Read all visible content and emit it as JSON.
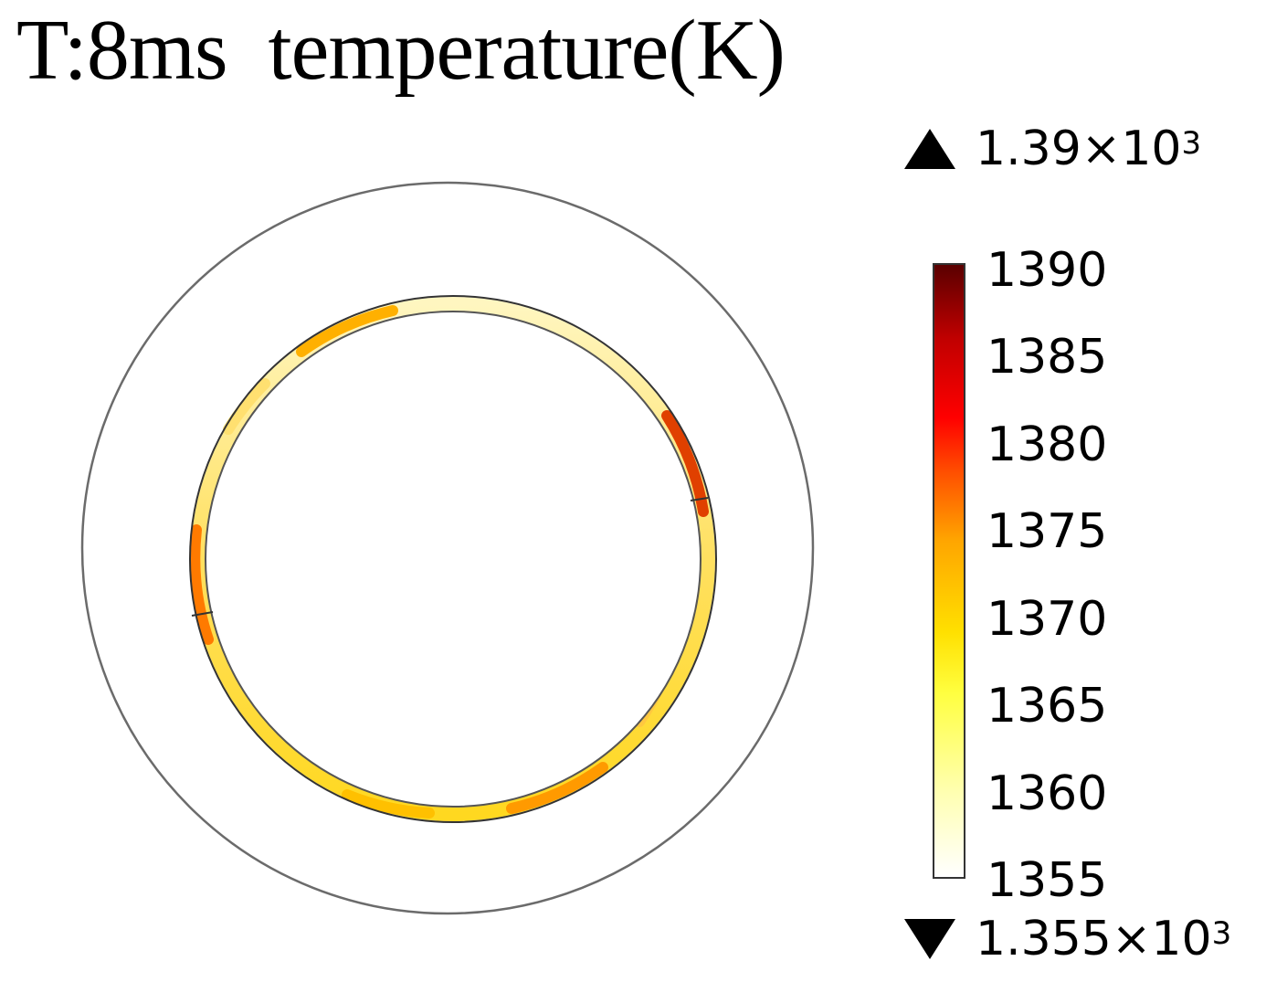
{
  "title": "T:8ms  temperature(K)",
  "colorbar": {
    "max_label": "1.39×10",
    "max_exp": "3",
    "min_label": "1.355×10",
    "min_exp": "3",
    "ticks": [
      "1390",
      "1385",
      "1380",
      "1375",
      "1370",
      "1365",
      "1360",
      "1355"
    ],
    "range": [
      1355,
      1390
    ],
    "colormap": [
      "#ffffff",
      "#ffff40",
      "#ffa500",
      "#ff0000",
      "#5a0000"
    ]
  },
  "icons": {
    "max": "triangle-up-icon",
    "min": "triangle-down-icon"
  }
}
